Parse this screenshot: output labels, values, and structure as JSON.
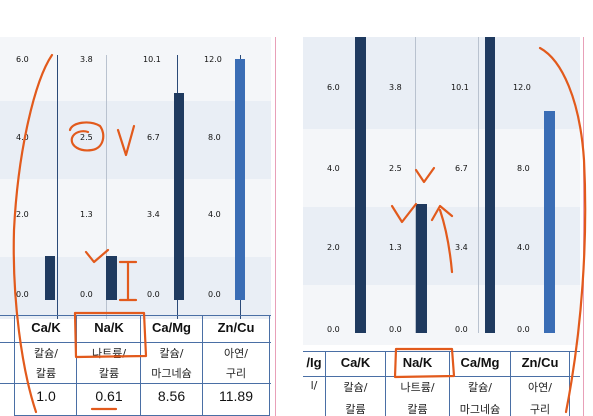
{
  "left_panel": {
    "columns": [
      {
        "top": "6.0",
        "mid": "4.0",
        "low": "2.0",
        "base": "0.0"
      },
      {
        "top": "3.8",
        "mid": "2.5",
        "low": "1.3",
        "base": "0.0"
      },
      {
        "top": "10.1",
        "mid": "6.7",
        "low": "3.4",
        "base": "0.0"
      },
      {
        "top": "12.0",
        "mid": "8.0",
        "low": "4.0",
        "base": "0.0"
      }
    ],
    "headers": [
      "Ca/K",
      "Na/K",
      "Ca/Mg",
      "Zn/Cu"
    ],
    "subs": [
      [
        "칼슘/",
        "칼륨"
      ],
      [
        "나트륨/",
        "칼륨"
      ],
      [
        "칼슘/",
        "마그네슘"
      ],
      [
        "아연/",
        "구리"
      ]
    ],
    "values": [
      "1.0",
      "0.61",
      "8.56",
      "11.89"
    ]
  },
  "right_panel": {
    "columns": [
      {
        "top": "6.0",
        "mid": "4.0",
        "low": "2.0",
        "base": "0.0"
      },
      {
        "top": "3.8",
        "mid": "2.5",
        "low": "1.3",
        "base": "0.0"
      },
      {
        "top": "10.1",
        "mid": "6.7",
        "low": "3.4",
        "base": "0.0"
      },
      {
        "top": "12.0",
        "mid": "8.0",
        "low": "4.0",
        "base": "0.0"
      }
    ],
    "headers_partial": "/Ig",
    "headers": [
      "Ca/K",
      "Na/K",
      "Ca/Mg",
      "Zn/Cu"
    ],
    "subs_partial": "l/",
    "subs": [
      "칼슘/",
      "나트륨/",
      "칼슘/",
      "아연/"
    ],
    "subs2": [
      "칼륨",
      "칼륨",
      "마그네슘",
      "구리"
    ]
  },
  "colors": {
    "bar_dark": "#1f3a5f",
    "bar_blue": "#3a6db5",
    "ink": "#e25a1c",
    "grid_blue": "#4a6fa5"
  }
}
